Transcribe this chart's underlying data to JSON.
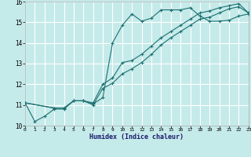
{
  "xlabel": "Humidex (Indice chaleur)",
  "bg_color": "#c5eaea",
  "grid_color": "#ffffff",
  "line_color": "#1e7070",
  "xlim": [
    0,
    23
  ],
  "ylim": [
    10,
    16
  ],
  "xticks": [
    0,
    1,
    2,
    3,
    4,
    5,
    6,
    7,
    8,
    9,
    10,
    11,
    12,
    13,
    14,
    15,
    16,
    17,
    18,
    19,
    20,
    21,
    22,
    23
  ],
  "yticks": [
    10,
    11,
    12,
    13,
    14,
    15,
    16
  ],
  "line1_x": [
    0,
    1,
    2,
    3,
    4,
    5,
    6,
    7,
    8,
    9,
    10,
    11,
    12,
    13,
    14,
    15,
    16,
    17,
    18,
    19,
    20,
    21,
    22,
    23
  ],
  "line1_y": [
    11.1,
    10.2,
    10.45,
    10.8,
    10.8,
    11.2,
    11.2,
    11.05,
    11.35,
    14.0,
    14.85,
    15.4,
    15.05,
    15.2,
    15.6,
    15.6,
    15.6,
    15.7,
    15.3,
    15.05,
    15.05,
    15.1,
    15.3,
    15.4
  ],
  "line2_x": [
    0,
    3,
    4,
    5,
    6,
    7,
    8,
    9,
    10,
    11,
    12,
    13,
    14,
    15,
    16,
    17,
    18,
    19,
    20,
    21,
    22,
    23
  ],
  "line2_y": [
    11.1,
    10.85,
    10.85,
    11.2,
    11.2,
    11.1,
    12.0,
    12.3,
    13.05,
    13.15,
    13.45,
    13.85,
    14.25,
    14.55,
    14.85,
    15.15,
    15.45,
    15.55,
    15.7,
    15.8,
    15.9,
    15.45
  ],
  "line3_x": [
    0,
    3,
    4,
    5,
    6,
    7,
    8,
    9,
    10,
    11,
    12,
    13,
    14,
    15,
    16,
    17,
    18,
    19,
    20,
    21,
    22,
    23
  ],
  "line3_y": [
    11.1,
    10.85,
    10.85,
    11.2,
    11.2,
    11.0,
    11.8,
    12.05,
    12.5,
    12.75,
    13.05,
    13.45,
    13.9,
    14.25,
    14.55,
    14.85,
    15.15,
    15.25,
    15.45,
    15.65,
    15.75,
    15.45
  ]
}
